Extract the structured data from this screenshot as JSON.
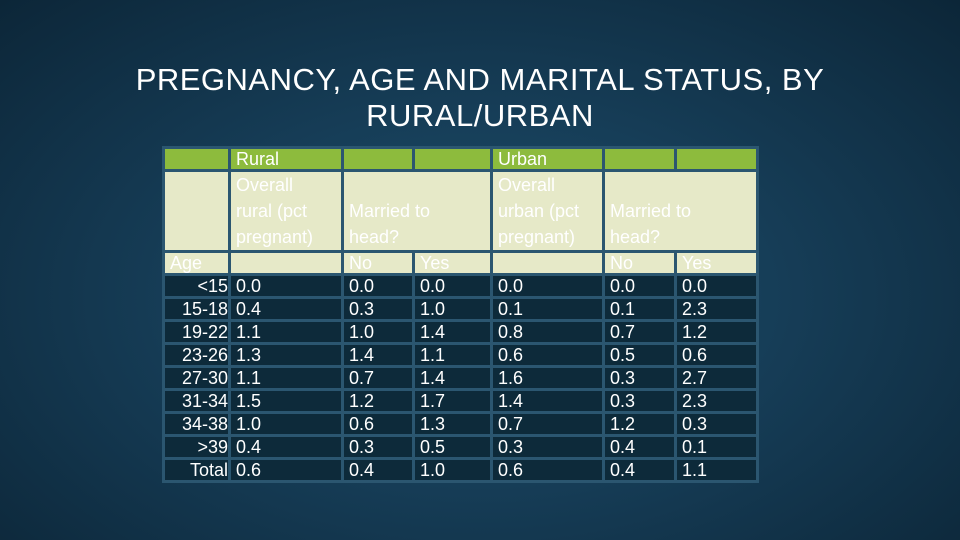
{
  "title": {
    "line1": "PREGNANCY, AGE AND MARITAL STATUS, BY",
    "line2": "RURAL/URBAN"
  },
  "table": {
    "rural_header": "Rural",
    "urban_header": "Urban",
    "rural_overall": [
      "Overall",
      "rural (pct",
      "pregnant)"
    ],
    "urban_overall": [
      "Overall",
      "urban (pct",
      "pregnant)"
    ],
    "married_rural": [
      "Married to",
      "head?"
    ],
    "married_urban": [
      "Married to",
      "head?"
    ],
    "age_header": "Age",
    "no_label": "No",
    "yes_label": "Yes",
    "rows": [
      {
        "age": "<15",
        "rural": "0.0",
        "rural_no": "0.0",
        "rural_yes": "0.0",
        "urban": "0.0",
        "urban_no": "0.0",
        "urban_yes": "0.0"
      },
      {
        "age": "15-18",
        "rural": "0.4",
        "rural_no": "0.3",
        "rural_yes": "1.0",
        "urban": "0.1",
        "urban_no": "0.1",
        "urban_yes": "2.3"
      },
      {
        "age": "19-22",
        "rural": "1.1",
        "rural_no": "1.0",
        "rural_yes": "1.4",
        "urban": "0.8",
        "urban_no": "0.7",
        "urban_yes": "1.2"
      },
      {
        "age": "23-26",
        "rural": "1.3",
        "rural_no": "1.4",
        "rural_yes": "1.1",
        "urban": "0.6",
        "urban_no": "0.5",
        "urban_yes": "0.6"
      },
      {
        "age": "27-30",
        "rural": "1.1",
        "rural_no": "0.7",
        "rural_yes": "1.4",
        "urban": "1.6",
        "urban_no": "0.3",
        "urban_yes": "2.7"
      },
      {
        "age": "31-34",
        "rural": "1.5",
        "rural_no": "1.2",
        "rural_yes": "1.7",
        "urban": "1.4",
        "urban_no": "0.3",
        "urban_yes": "2.3"
      },
      {
        "age": "34-38",
        "rural": "1.0",
        "rural_no": "0.6",
        "rural_yes": "1.3",
        "urban": "0.7",
        "urban_no": "1.2",
        "urban_yes": "0.3"
      },
      {
        "age": ">39",
        "rural": "0.4",
        "rural_no": "0.3",
        "rural_yes": "0.5",
        "urban": "0.3",
        "urban_no": "0.4",
        "urban_yes": "0.1"
      },
      {
        "age": "Total",
        "rural": "0.6",
        "rural_no": "0.4",
        "rural_yes": "1.0",
        "urban": "0.6",
        "urban_no": "0.4",
        "urban_yes": "1.1"
      }
    ]
  },
  "colors": {
    "header_green": "#8dbb3d",
    "header_light": "#e6e9c8",
    "body_dark": "#0d2a3a",
    "grid": "#2b5670"
  }
}
